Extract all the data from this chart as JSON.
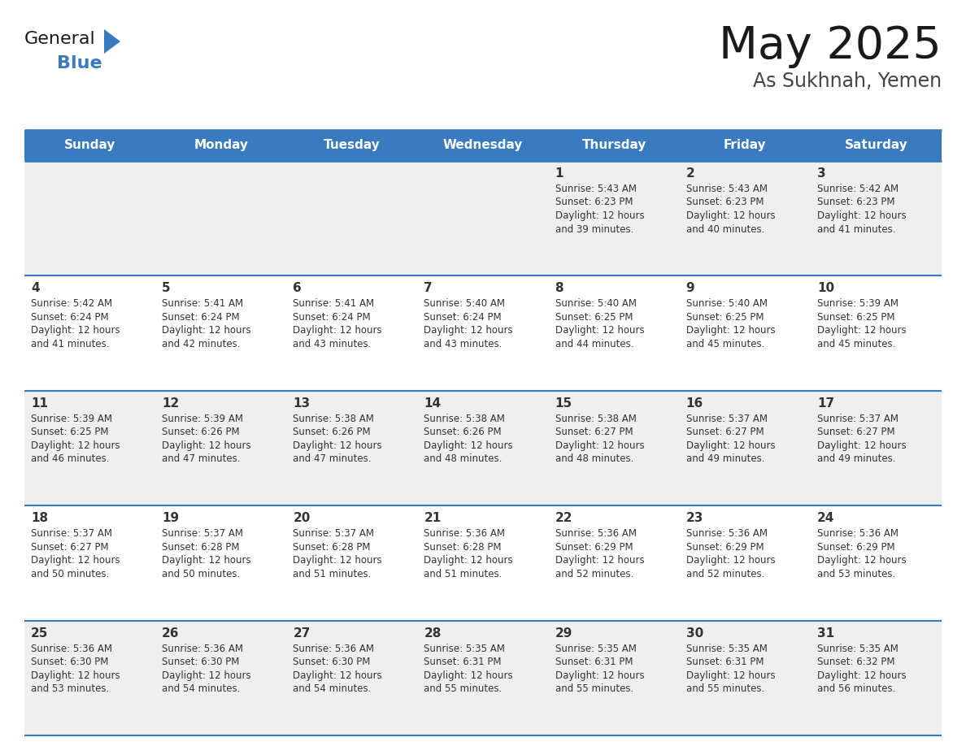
{
  "title": "May 2025",
  "subtitle": "As Sukhnah, Yemen",
  "header_bg_color": "#3a7abf",
  "header_text_color": "#ffffff",
  "day_names": [
    "Sunday",
    "Monday",
    "Tuesday",
    "Wednesday",
    "Thursday",
    "Friday",
    "Saturday"
  ],
  "row_bg_even": "#efefef",
  "row_bg_odd": "#ffffff",
  "cell_text_color": "#333333",
  "border_color": "#3a7abf",
  "title_color": "#1a1a1a",
  "subtitle_color": "#444444",
  "logo_general_color": "#1a1a1a",
  "logo_blue_color": "#3a7abf",
  "logo_triangle_color": "#3a7abf",
  "days": [
    {
      "day": 1,
      "col": 4,
      "row": 0,
      "sunrise": "5:43 AM",
      "sunset": "6:23 PM",
      "daylight_hours": 12,
      "daylight_minutes": 39
    },
    {
      "day": 2,
      "col": 5,
      "row": 0,
      "sunrise": "5:43 AM",
      "sunset": "6:23 PM",
      "daylight_hours": 12,
      "daylight_minutes": 40
    },
    {
      "day": 3,
      "col": 6,
      "row": 0,
      "sunrise": "5:42 AM",
      "sunset": "6:23 PM",
      "daylight_hours": 12,
      "daylight_minutes": 41
    },
    {
      "day": 4,
      "col": 0,
      "row": 1,
      "sunrise": "5:42 AM",
      "sunset": "6:24 PM",
      "daylight_hours": 12,
      "daylight_minutes": 41
    },
    {
      "day": 5,
      "col": 1,
      "row": 1,
      "sunrise": "5:41 AM",
      "sunset": "6:24 PM",
      "daylight_hours": 12,
      "daylight_minutes": 42
    },
    {
      "day": 6,
      "col": 2,
      "row": 1,
      "sunrise": "5:41 AM",
      "sunset": "6:24 PM",
      "daylight_hours": 12,
      "daylight_minutes": 43
    },
    {
      "day": 7,
      "col": 3,
      "row": 1,
      "sunrise": "5:40 AM",
      "sunset": "6:24 PM",
      "daylight_hours": 12,
      "daylight_minutes": 43
    },
    {
      "day": 8,
      "col": 4,
      "row": 1,
      "sunrise": "5:40 AM",
      "sunset": "6:25 PM",
      "daylight_hours": 12,
      "daylight_minutes": 44
    },
    {
      "day": 9,
      "col": 5,
      "row": 1,
      "sunrise": "5:40 AM",
      "sunset": "6:25 PM",
      "daylight_hours": 12,
      "daylight_minutes": 45
    },
    {
      "day": 10,
      "col": 6,
      "row": 1,
      "sunrise": "5:39 AM",
      "sunset": "6:25 PM",
      "daylight_hours": 12,
      "daylight_minutes": 45
    },
    {
      "day": 11,
      "col": 0,
      "row": 2,
      "sunrise": "5:39 AM",
      "sunset": "6:25 PM",
      "daylight_hours": 12,
      "daylight_minutes": 46
    },
    {
      "day": 12,
      "col": 1,
      "row": 2,
      "sunrise": "5:39 AM",
      "sunset": "6:26 PM",
      "daylight_hours": 12,
      "daylight_minutes": 47
    },
    {
      "day": 13,
      "col": 2,
      "row": 2,
      "sunrise": "5:38 AM",
      "sunset": "6:26 PM",
      "daylight_hours": 12,
      "daylight_minutes": 47
    },
    {
      "day": 14,
      "col": 3,
      "row": 2,
      "sunrise": "5:38 AM",
      "sunset": "6:26 PM",
      "daylight_hours": 12,
      "daylight_minutes": 48
    },
    {
      "day": 15,
      "col": 4,
      "row": 2,
      "sunrise": "5:38 AM",
      "sunset": "6:27 PM",
      "daylight_hours": 12,
      "daylight_minutes": 48
    },
    {
      "day": 16,
      "col": 5,
      "row": 2,
      "sunrise": "5:37 AM",
      "sunset": "6:27 PM",
      "daylight_hours": 12,
      "daylight_minutes": 49
    },
    {
      "day": 17,
      "col": 6,
      "row": 2,
      "sunrise": "5:37 AM",
      "sunset": "6:27 PM",
      "daylight_hours": 12,
      "daylight_minutes": 49
    },
    {
      "day": 18,
      "col": 0,
      "row": 3,
      "sunrise": "5:37 AM",
      "sunset": "6:27 PM",
      "daylight_hours": 12,
      "daylight_minutes": 50
    },
    {
      "day": 19,
      "col": 1,
      "row": 3,
      "sunrise": "5:37 AM",
      "sunset": "6:28 PM",
      "daylight_hours": 12,
      "daylight_minutes": 50
    },
    {
      "day": 20,
      "col": 2,
      "row": 3,
      "sunrise": "5:37 AM",
      "sunset": "6:28 PM",
      "daylight_hours": 12,
      "daylight_minutes": 51
    },
    {
      "day": 21,
      "col": 3,
      "row": 3,
      "sunrise": "5:36 AM",
      "sunset": "6:28 PM",
      "daylight_hours": 12,
      "daylight_minutes": 51
    },
    {
      "day": 22,
      "col": 4,
      "row": 3,
      "sunrise": "5:36 AM",
      "sunset": "6:29 PM",
      "daylight_hours": 12,
      "daylight_minutes": 52
    },
    {
      "day": 23,
      "col": 5,
      "row": 3,
      "sunrise": "5:36 AM",
      "sunset": "6:29 PM",
      "daylight_hours": 12,
      "daylight_minutes": 52
    },
    {
      "day": 24,
      "col": 6,
      "row": 3,
      "sunrise": "5:36 AM",
      "sunset": "6:29 PM",
      "daylight_hours": 12,
      "daylight_minutes": 53
    },
    {
      "day": 25,
      "col": 0,
      "row": 4,
      "sunrise": "5:36 AM",
      "sunset": "6:30 PM",
      "daylight_hours": 12,
      "daylight_minutes": 53
    },
    {
      "day": 26,
      "col": 1,
      "row": 4,
      "sunrise": "5:36 AM",
      "sunset": "6:30 PM",
      "daylight_hours": 12,
      "daylight_minutes": 54
    },
    {
      "day": 27,
      "col": 2,
      "row": 4,
      "sunrise": "5:36 AM",
      "sunset": "6:30 PM",
      "daylight_hours": 12,
      "daylight_minutes": 54
    },
    {
      "day": 28,
      "col": 3,
      "row": 4,
      "sunrise": "5:35 AM",
      "sunset": "6:31 PM",
      "daylight_hours": 12,
      "daylight_minutes": 55
    },
    {
      "day": 29,
      "col": 4,
      "row": 4,
      "sunrise": "5:35 AM",
      "sunset": "6:31 PM",
      "daylight_hours": 12,
      "daylight_minutes": 55
    },
    {
      "day": 30,
      "col": 5,
      "row": 4,
      "sunrise": "5:35 AM",
      "sunset": "6:31 PM",
      "daylight_hours": 12,
      "daylight_minutes": 55
    },
    {
      "day": 31,
      "col": 6,
      "row": 4,
      "sunrise": "5:35 AM",
      "sunset": "6:32 PM",
      "daylight_hours": 12,
      "daylight_minutes": 56
    }
  ]
}
